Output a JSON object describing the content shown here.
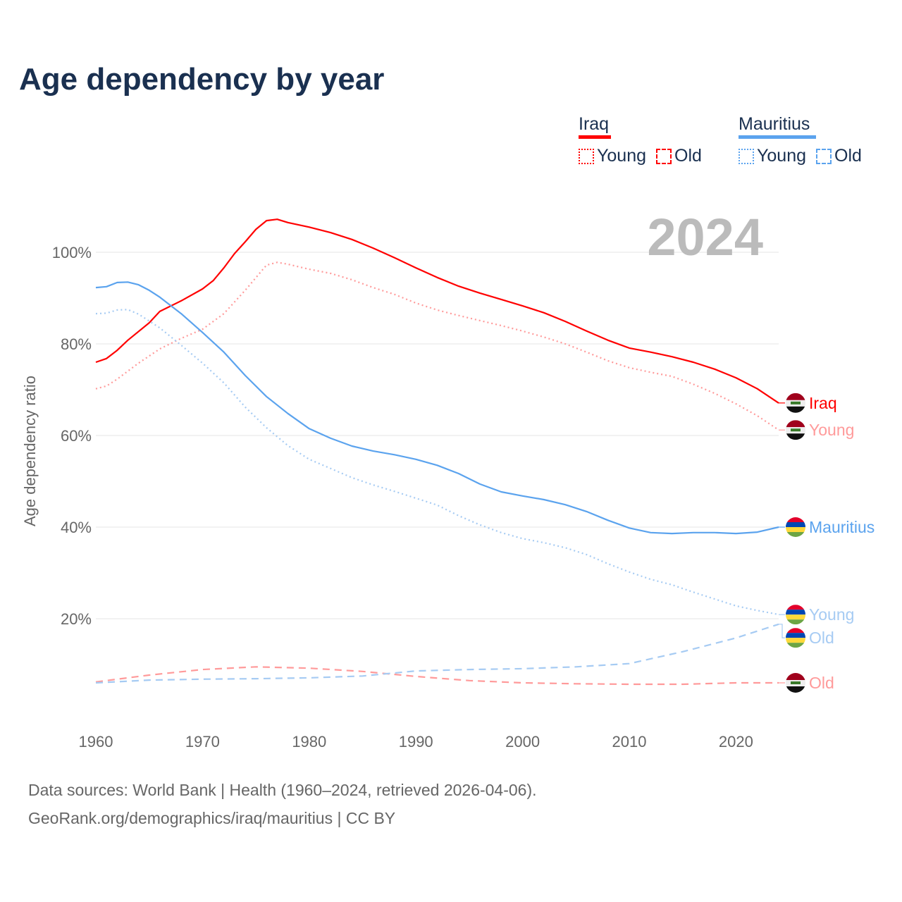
{
  "chart_data": {
    "type": "line",
    "title": "Age dependency by year",
    "year_badge": "2024",
    "ylabel": "Age dependency ratio",
    "xlabel": "",
    "xlim": [
      1960,
      2024
    ],
    "ylim": [
      0,
      110
    ],
    "x_ticks": [
      1960,
      1970,
      1980,
      1990,
      2000,
      2010,
      2020
    ],
    "y_ticks": [
      20,
      40,
      60,
      80,
      100
    ],
    "y_tick_labels": [
      "20%",
      "40%",
      "60%",
      "80%",
      "100%"
    ],
    "grid": true,
    "legend": {
      "placement": "top-right",
      "groups": [
        {
          "country": "Iraq",
          "color": "#ff0000",
          "items": [
            "Young",
            "Old"
          ]
        },
        {
          "country": "Mauritius",
          "color": "#5ba3ee",
          "items": [
            "Young",
            "Old"
          ]
        }
      ]
    },
    "series": [
      {
        "name": "Iraq",
        "label": "Iraq",
        "kind": "total",
        "color": "#ff0000",
        "dash": "solid",
        "flag": "iraq",
        "points": [
          [
            1960,
            76.0
          ],
          [
            1961,
            76.8
          ],
          [
            1962,
            78.6
          ],
          [
            1963,
            80.8
          ],
          [
            1965,
            84.6
          ],
          [
            1966,
            87.1
          ],
          [
            1968,
            89.4
          ],
          [
            1970,
            92.0
          ],
          [
            1971,
            93.8
          ],
          [
            1972,
            96.6
          ],
          [
            1973,
            99.7
          ],
          [
            1974,
            102.3
          ],
          [
            1975,
            105.0
          ],
          [
            1976,
            106.9
          ],
          [
            1977,
            107.2
          ],
          [
            1978,
            106.5
          ],
          [
            1980,
            105.5
          ],
          [
            1982,
            104.3
          ],
          [
            1984,
            102.8
          ],
          [
            1986,
            100.9
          ],
          [
            1988,
            98.8
          ],
          [
            1990,
            96.6
          ],
          [
            1992,
            94.5
          ],
          [
            1994,
            92.6
          ],
          [
            1996,
            91.1
          ],
          [
            1998,
            89.7
          ],
          [
            2000,
            88.3
          ],
          [
            2002,
            86.8
          ],
          [
            2004,
            84.9
          ],
          [
            2006,
            82.8
          ],
          [
            2008,
            80.8
          ],
          [
            2010,
            79.1
          ],
          [
            2012,
            78.2
          ],
          [
            2014,
            77.2
          ],
          [
            2016,
            76.0
          ],
          [
            2018,
            74.5
          ],
          [
            2020,
            72.6
          ],
          [
            2022,
            70.2
          ],
          [
            2024,
            67.1
          ]
        ]
      },
      {
        "name": "Iraq Young",
        "label": "Young",
        "kind": "young",
        "color": "#ff9a9a",
        "dash": "dotted",
        "flag": "iraq",
        "points": [
          [
            1960,
            70.2
          ],
          [
            1961,
            70.8
          ],
          [
            1962,
            72.3
          ],
          [
            1964,
            75.8
          ],
          [
            1966,
            78.9
          ],
          [
            1968,
            81.2
          ],
          [
            1970,
            83.2
          ],
          [
            1972,
            86.6
          ],
          [
            1974,
            91.7
          ],
          [
            1976,
            97.2
          ],
          [
            1977,
            97.8
          ],
          [
            1978,
            97.4
          ],
          [
            1980,
            96.3
          ],
          [
            1982,
            95.4
          ],
          [
            1984,
            94.0
          ],
          [
            1986,
            92.3
          ],
          [
            1988,
            90.8
          ],
          [
            1990,
            88.9
          ],
          [
            1992,
            87.4
          ],
          [
            1994,
            86.2
          ],
          [
            1996,
            85.1
          ],
          [
            1998,
            84.0
          ],
          [
            2000,
            82.8
          ],
          [
            2002,
            81.5
          ],
          [
            2004,
            80.0
          ],
          [
            2006,
            78.2
          ],
          [
            2008,
            76.3
          ],
          [
            2010,
            74.8
          ],
          [
            2012,
            73.8
          ],
          [
            2014,
            72.9
          ],
          [
            2016,
            71.2
          ],
          [
            2018,
            69.2
          ],
          [
            2020,
            66.9
          ],
          [
            2022,
            64.3
          ],
          [
            2024,
            61.2
          ]
        ]
      },
      {
        "name": "Iraq Old",
        "label": "Old",
        "kind": "old",
        "color": "#ff9a9a",
        "dash": "dashed",
        "flag": "iraq",
        "points": [
          [
            1960,
            6.2
          ],
          [
            1965,
            7.7
          ],
          [
            1970,
            8.9
          ],
          [
            1975,
            9.5
          ],
          [
            1980,
            9.2
          ],
          [
            1985,
            8.5
          ],
          [
            1990,
            7.4
          ],
          [
            1995,
            6.5
          ],
          [
            2000,
            6.0
          ],
          [
            2005,
            5.8
          ],
          [
            2010,
            5.7
          ],
          [
            2015,
            5.7
          ],
          [
            2020,
            6.0
          ],
          [
            2024,
            6.0
          ]
        ]
      },
      {
        "name": "Mauritius",
        "label": "Mauritius",
        "kind": "total",
        "color": "#5ba3ee",
        "dash": "solid",
        "flag": "mauritius",
        "points": [
          [
            1960,
            92.3
          ],
          [
            1961,
            92.5
          ],
          [
            1962,
            93.4
          ],
          [
            1963,
            93.5
          ],
          [
            1964,
            92.9
          ],
          [
            1965,
            91.7
          ],
          [
            1966,
            90.2
          ],
          [
            1968,
            86.6
          ],
          [
            1970,
            82.5
          ],
          [
            1972,
            78.2
          ],
          [
            1974,
            73.1
          ],
          [
            1976,
            68.5
          ],
          [
            1978,
            64.8
          ],
          [
            1980,
            61.5
          ],
          [
            1982,
            59.4
          ],
          [
            1984,
            57.7
          ],
          [
            1986,
            56.6
          ],
          [
            1988,
            55.8
          ],
          [
            1990,
            54.8
          ],
          [
            1992,
            53.5
          ],
          [
            1994,
            51.7
          ],
          [
            1996,
            49.4
          ],
          [
            1998,
            47.7
          ],
          [
            2000,
            46.8
          ],
          [
            2002,
            46.0
          ],
          [
            2004,
            44.9
          ],
          [
            2006,
            43.4
          ],
          [
            2008,
            41.5
          ],
          [
            2010,
            39.8
          ],
          [
            2012,
            38.8
          ],
          [
            2014,
            38.6
          ],
          [
            2016,
            38.8
          ],
          [
            2018,
            38.8
          ],
          [
            2020,
            38.6
          ],
          [
            2022,
            38.9
          ],
          [
            2024,
            40.0
          ]
        ]
      },
      {
        "name": "Mauritius Young",
        "label": "Young",
        "kind": "young",
        "color": "#a6cbf3",
        "dash": "dotted",
        "flag": "mauritius",
        "points": [
          [
            1960,
            86.6
          ],
          [
            1961,
            86.7
          ],
          [
            1962,
            87.4
          ],
          [
            1963,
            87.5
          ],
          [
            1964,
            86.5
          ],
          [
            1966,
            83.5
          ],
          [
            1968,
            79.7
          ],
          [
            1970,
            75.8
          ],
          [
            1972,
            71.5
          ],
          [
            1974,
            66.2
          ],
          [
            1976,
            61.7
          ],
          [
            1978,
            57.8
          ],
          [
            1980,
            54.8
          ],
          [
            1982,
            52.8
          ],
          [
            1984,
            50.8
          ],
          [
            1986,
            49.2
          ],
          [
            1988,
            47.8
          ],
          [
            1990,
            46.3
          ],
          [
            1992,
            44.8
          ],
          [
            1994,
            42.5
          ],
          [
            1996,
            40.5
          ],
          [
            1998,
            38.8
          ],
          [
            2000,
            37.5
          ],
          [
            2002,
            36.6
          ],
          [
            2004,
            35.5
          ],
          [
            2006,
            34.0
          ],
          [
            2008,
            32.0
          ],
          [
            2010,
            30.2
          ],
          [
            2012,
            28.6
          ],
          [
            2014,
            27.4
          ],
          [
            2016,
            25.8
          ],
          [
            2018,
            24.3
          ],
          [
            2020,
            22.8
          ],
          [
            2022,
            21.8
          ],
          [
            2024,
            20.9
          ]
        ]
      },
      {
        "name": "Mauritius Old",
        "label": "Old",
        "kind": "old",
        "color": "#a6cbf3",
        "dash": "dashed",
        "flag": "mauritius",
        "points": [
          [
            1960,
            6.0
          ],
          [
            1965,
            6.6
          ],
          [
            1970,
            6.8
          ],
          [
            1975,
            6.9
          ],
          [
            1980,
            7.1
          ],
          [
            1985,
            7.5
          ],
          [
            1990,
            8.6
          ],
          [
            1995,
            8.9
          ],
          [
            2000,
            9.1
          ],
          [
            2005,
            9.5
          ],
          [
            2010,
            10.2
          ],
          [
            2015,
            12.8
          ],
          [
            2020,
            15.8
          ],
          [
            2024,
            18.8
          ]
        ]
      }
    ]
  },
  "footer": {
    "line1": "Data sources: World Bank | Health (1960–2024, retrieved 2026-04-06).",
    "line2": "GeoRank.org/demographics/iraq/mauritius | CC BY"
  }
}
